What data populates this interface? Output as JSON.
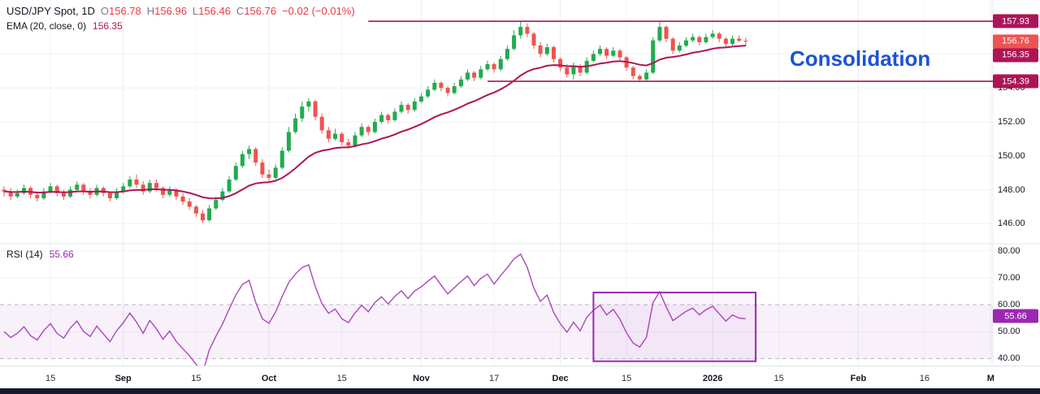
{
  "header": {
    "title": "USD/JPY Spot, 1D",
    "ohlc": {
      "o_label": "O",
      "o": "156.78",
      "h_label": "H",
      "h": "156.96",
      "l_label": "L",
      "l": "156.46",
      "c_label": "C",
      "c": "156.76",
      "change": "−0.02 (−0.01%)"
    },
    "indicator": {
      "label": "EMA (20, close, 0)",
      "value": "156.35"
    }
  },
  "rsi_legend": {
    "label": "RSI (14)",
    "value": "55.66"
  },
  "annotation": {
    "text": "Consolidation",
    "color": "#1d52d8"
  },
  "chart_data": {
    "type": "candlestick",
    "symbol": "USD/JPY Spot",
    "timeframe": "1D",
    "last_price": 156.76,
    "ema_period": 20,
    "ema_value": 156.35,
    "rsi_period": 14,
    "rsi_value": 55.66,
    "price_axis": {
      "min": 145.2,
      "max": 158.8,
      "grid": [
        146,
        148,
        150,
        152,
        154,
        156
      ],
      "ticks": [
        {
          "v": 154,
          "label": "154.00"
        },
        {
          "v": 152,
          "label": "152.00"
        },
        {
          "v": 150,
          "label": "150.00"
        },
        {
          "v": 148,
          "label": "148.00"
        },
        {
          "v": 146,
          "label": "146.00"
        }
      ],
      "badges": [
        {
          "label": "157.93",
          "price": 157.93,
          "color": "#ad1457"
        },
        {
          "label": "156.76",
          "price": 156.76,
          "color": "#ef5350"
        },
        {
          "label": "156.35",
          "price": 156.35,
          "color": "#ad1457"
        },
        {
          "label": "154.39",
          "price": 154.39,
          "color": "#ad1457"
        }
      ]
    },
    "rsi_axis": {
      "min": 38,
      "max": 82,
      "grid": [
        80,
        70,
        50
      ],
      "band": [
        40,
        60
      ],
      "ticks": [
        {
          "v": 80,
          "label": "80.00"
        },
        {
          "v": 70,
          "label": "70.00"
        },
        {
          "v": 60,
          "label": "60.00"
        },
        {
          "v": 50,
          "label": "50.00"
        },
        {
          "v": 40,
          "label": "40.00"
        }
      ],
      "badge": {
        "value": 55.66,
        "label": "55.66"
      }
    },
    "horizontal_lines": [
      {
        "name": "resistance",
        "price": 157.93,
        "from_index": 55
      },
      {
        "name": "support",
        "price": 154.39,
        "from_index": 73
      }
    ],
    "rsi_box": {
      "from_index": 89,
      "to_index": 113.5,
      "top_value": 64.5,
      "bottom_value": 39
    },
    "time_ticks": [
      {
        "label": "15",
        "i": 7,
        "major": false
      },
      {
        "label": "Sep",
        "i": 18,
        "major": true
      },
      {
        "label": "15",
        "i": 29,
        "major": false
      },
      {
        "label": "Oct",
        "i": 40,
        "major": true
      },
      {
        "label": "15",
        "i": 51,
        "major": false
      },
      {
        "label": "Nov",
        "i": 63,
        "major": true
      },
      {
        "label": "17",
        "i": 74,
        "major": false
      },
      {
        "label": "Dec",
        "i": 84,
        "major": true
      },
      {
        "label": "15",
        "i": 94,
        "major": false
      },
      {
        "label": "2026",
        "i": 107,
        "major": true
      },
      {
        "label": "15",
        "i": 117,
        "major": false
      },
      {
        "label": "Feb",
        "i": 129,
        "major": true
      },
      {
        "label": "16",
        "i": 139,
        "major": false
      },
      {
        "label": "M",
        "i": 149,
        "major": true
      }
    ],
    "colors": {
      "up": "#22ab4e",
      "down": "#ef5350",
      "ema": "#ad1457",
      "trend": "#ad1457",
      "rsi": "#ab47bc",
      "rsi_badge": "#9c27b0",
      "box": "#9c27b0",
      "band_fill": "rgba(171,71,188,0.08)",
      "dashed": "#b6bac4",
      "grid": "#f0f2f7",
      "grid_major_v": "#e9ecf3",
      "grid_minor_v": "#f3f5f9"
    },
    "candles": [
      [
        148.0,
        148.2,
        147.6,
        147.9
      ],
      [
        147.9,
        148.1,
        147.4,
        147.6
      ],
      [
        147.6,
        148.0,
        147.5,
        147.8
      ],
      [
        147.8,
        148.3,
        147.7,
        148.1
      ],
      [
        148.1,
        148.2,
        147.5,
        147.7
      ],
      [
        147.7,
        147.9,
        147.3,
        147.5
      ],
      [
        147.5,
        148.1,
        147.4,
        147.9
      ],
      [
        147.9,
        148.4,
        147.8,
        148.2
      ],
      [
        148.2,
        148.3,
        147.6,
        147.8
      ],
      [
        147.8,
        148.0,
        147.4,
        147.6
      ],
      [
        147.6,
        148.2,
        147.5,
        148.0
      ],
      [
        148.0,
        148.5,
        147.9,
        148.3
      ],
      [
        148.3,
        148.4,
        147.7,
        147.9
      ],
      [
        147.9,
        148.1,
        147.5,
        147.7
      ],
      [
        147.7,
        148.3,
        147.6,
        148.1
      ],
      [
        148.1,
        148.2,
        147.6,
        147.8
      ],
      [
        147.8,
        147.9,
        147.3,
        147.5
      ],
      [
        147.5,
        148.1,
        147.4,
        147.9
      ],
      [
        147.9,
        148.4,
        147.8,
        148.2
      ],
      [
        148.2,
        148.8,
        148.1,
        148.6
      ],
      [
        148.6,
        148.9,
        148.1,
        148.3
      ],
      [
        148.3,
        148.5,
        147.7,
        147.9
      ],
      [
        147.9,
        148.6,
        147.8,
        148.4
      ],
      [
        148.4,
        148.6,
        147.9,
        148.1
      ],
      [
        148.1,
        148.2,
        147.5,
        147.7
      ],
      [
        147.7,
        148.2,
        147.6,
        148.0
      ],
      [
        148.0,
        148.1,
        147.4,
        147.6
      ],
      [
        147.6,
        147.8,
        147.1,
        147.3
      ],
      [
        147.3,
        147.5,
        146.8,
        147.0
      ],
      [
        147.0,
        147.1,
        146.4,
        146.6
      ],
      [
        146.6,
        146.8,
        146.05,
        146.2
      ],
      [
        146.2,
        147.1,
        146.1,
        146.9
      ],
      [
        146.9,
        147.6,
        146.8,
        147.4
      ],
      [
        147.4,
        148.1,
        147.3,
        147.9
      ],
      [
        147.9,
        148.8,
        147.8,
        148.6
      ],
      [
        148.6,
        149.6,
        148.5,
        149.4
      ],
      [
        149.4,
        150.3,
        149.3,
        150.1
      ],
      [
        150.1,
        150.6,
        149.8,
        150.4
      ],
      [
        150.4,
        150.5,
        149.4,
        149.6
      ],
      [
        149.6,
        149.8,
        148.7,
        148.9
      ],
      [
        148.9,
        149.2,
        148.5,
        148.7
      ],
      [
        148.7,
        149.5,
        148.6,
        149.3
      ],
      [
        149.3,
        150.5,
        149.2,
        150.3
      ],
      [
        150.3,
        151.7,
        150.2,
        151.4
      ],
      [
        151.4,
        152.5,
        151.3,
        152.2
      ],
      [
        152.2,
        153.2,
        152.0,
        152.9
      ],
      [
        152.9,
        153.4,
        152.6,
        153.2
      ],
      [
        153.2,
        153.3,
        152.1,
        152.3
      ],
      [
        152.3,
        152.5,
        151.3,
        151.5
      ],
      [
        151.5,
        151.7,
        150.8,
        151.0
      ],
      [
        151.0,
        151.6,
        150.9,
        151.3
      ],
      [
        151.3,
        151.4,
        150.6,
        150.8
      ],
      [
        150.8,
        151.0,
        150.4,
        150.6
      ],
      [
        150.6,
        151.4,
        150.5,
        151.2
      ],
      [
        151.2,
        151.9,
        151.1,
        151.7
      ],
      [
        151.7,
        151.8,
        151.2,
        151.4
      ],
      [
        151.4,
        152.2,
        151.3,
        152.0
      ],
      [
        152.0,
        152.6,
        151.9,
        152.4
      ],
      [
        152.4,
        152.5,
        151.9,
        152.1
      ],
      [
        152.1,
        152.8,
        152.0,
        152.6
      ],
      [
        152.6,
        153.2,
        152.5,
        153.0
      ],
      [
        153.0,
        153.1,
        152.5,
        152.7
      ],
      [
        152.7,
        153.4,
        152.6,
        153.2
      ],
      [
        153.2,
        153.7,
        153.1,
        153.5
      ],
      [
        153.5,
        154.1,
        153.4,
        153.9
      ],
      [
        153.9,
        154.5,
        153.8,
        154.3
      ],
      [
        154.3,
        154.4,
        153.8,
        154.0
      ],
      [
        154.0,
        154.1,
        153.5,
        153.7
      ],
      [
        153.7,
        154.3,
        153.6,
        154.1
      ],
      [
        154.1,
        154.7,
        154.0,
        154.5
      ],
      [
        154.5,
        155.1,
        154.4,
        154.9
      ],
      [
        154.9,
        155.0,
        154.4,
        154.6
      ],
      [
        154.6,
        155.3,
        154.5,
        155.1
      ],
      [
        155.1,
        155.6,
        155.0,
        155.4
      ],
      [
        155.4,
        155.5,
        154.9,
        155.1
      ],
      [
        155.1,
        155.9,
        155.0,
        155.7
      ],
      [
        155.7,
        156.5,
        155.6,
        156.3
      ],
      [
        156.3,
        157.4,
        156.2,
        157.1
      ],
      [
        157.1,
        157.93,
        156.9,
        157.6
      ],
      [
        157.6,
        157.8,
        157.0,
        157.2
      ],
      [
        157.2,
        157.3,
        156.3,
        156.5
      ],
      [
        156.5,
        156.7,
        155.8,
        156.0
      ],
      [
        156.0,
        156.6,
        155.9,
        156.4
      ],
      [
        156.4,
        156.5,
        155.5,
        155.7
      ],
      [
        155.7,
        155.8,
        155.0,
        155.2
      ],
      [
        155.2,
        155.4,
        154.6,
        154.8
      ],
      [
        154.8,
        155.5,
        154.5,
        155.3
      ],
      [
        155.3,
        155.4,
        154.7,
        154.9
      ],
      [
        154.9,
        155.8,
        154.8,
        155.6
      ],
      [
        155.6,
        156.2,
        155.5,
        156.0
      ],
      [
        156.0,
        156.5,
        155.9,
        156.3
      ],
      [
        156.3,
        156.4,
        155.7,
        155.9
      ],
      [
        155.9,
        156.4,
        155.8,
        156.2
      ],
      [
        156.2,
        156.3,
        155.6,
        155.8
      ],
      [
        155.8,
        155.9,
        155.0,
        155.2
      ],
      [
        155.2,
        155.3,
        154.5,
        154.7
      ],
      [
        154.7,
        154.8,
        154.39,
        154.5
      ],
      [
        154.5,
        155.1,
        154.4,
        154.9
      ],
      [
        154.9,
        157.0,
        154.8,
        156.8
      ],
      [
        156.8,
        157.9,
        156.7,
        157.6
      ],
      [
        157.6,
        157.7,
        156.7,
        156.9
      ],
      [
        156.9,
        157.0,
        156.0,
        156.2
      ],
      [
        156.2,
        156.7,
        156.1,
        156.5
      ],
      [
        156.5,
        157.0,
        156.4,
        156.8
      ],
      [
        156.8,
        157.2,
        156.7,
        157.0
      ],
      [
        157.0,
        157.1,
        156.5,
        156.7
      ],
      [
        156.7,
        157.2,
        156.6,
        157.0
      ],
      [
        157.0,
        157.4,
        156.9,
        157.2
      ],
      [
        157.2,
        157.3,
        156.7,
        156.9
      ],
      [
        156.9,
        157.0,
        156.4,
        156.6
      ],
      [
        156.6,
        157.1,
        156.5,
        156.9
      ],
      [
        156.9,
        157.1,
        156.7,
        156.78
      ],
      [
        156.78,
        156.96,
        156.46,
        156.76
      ]
    ]
  }
}
